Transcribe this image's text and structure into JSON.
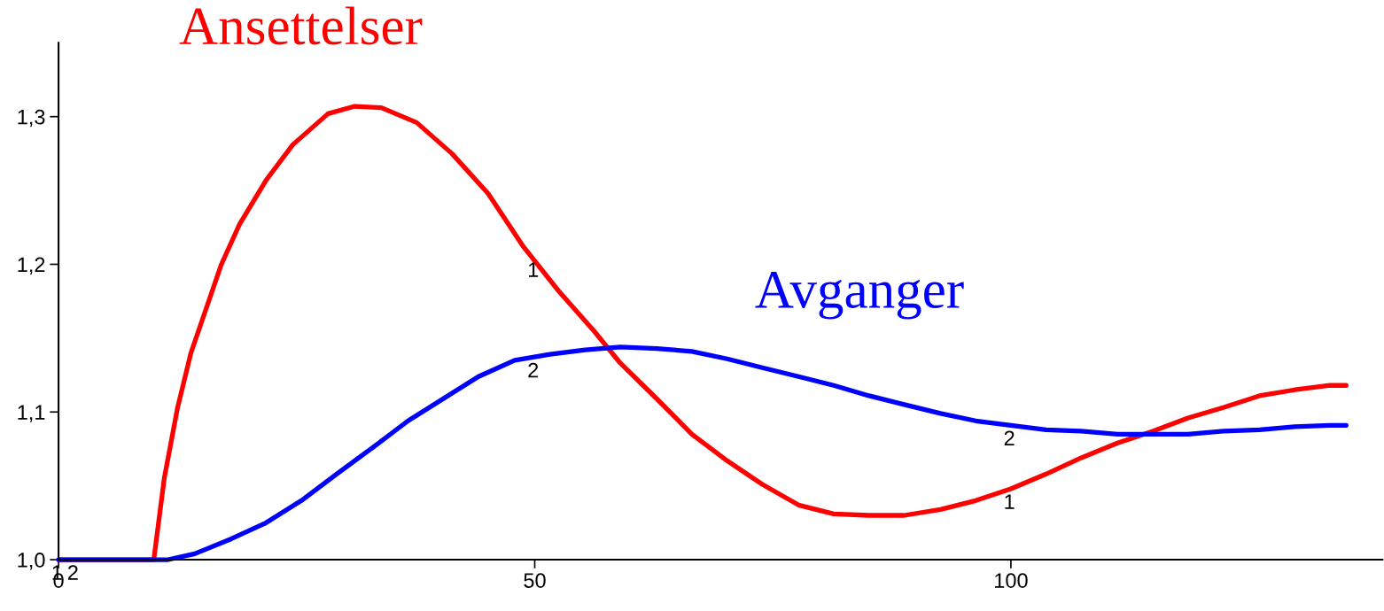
{
  "chart_data": {
    "type": "line",
    "xlim": [
      0,
      139
    ],
    "xticks": [
      0,
      50,
      100
    ],
    "ylim": [
      1.0,
      1.35
    ],
    "yticks": [
      {
        "value": 1.0,
        "label": "1,0"
      },
      {
        "value": 1.1,
        "label": "1,1"
      },
      {
        "value": 1.2,
        "label": "1,2"
      },
      {
        "value": 1.3,
        "label": "1,3"
      }
    ],
    "grid": false,
    "legend": false,
    "marker": "none",
    "line_style": "solid",
    "series": [
      {
        "name": "Ansettelser",
        "color": "#ff0000",
        "x": [
          0,
          10,
          11.1,
          12.5,
          13.9,
          15.5,
          17.1,
          19.0,
          21.8,
          24.6,
          28.3,
          31.1,
          33.9,
          37.6,
          41.3,
          45.1,
          48.8,
          52.5,
          56.2,
          59.0,
          62.8,
          66.5,
          70.2,
          73.9,
          77.7,
          81.4,
          85.1,
          88.8,
          92.6,
          96.3,
          100,
          103.7,
          107.4,
          111.2,
          114.9,
          118.6,
          122.3,
          126.1,
          129.8,
          133.5,
          135.2
        ],
        "values": [
          1.0,
          1.0,
          1.055,
          1.103,
          1.14,
          1.17,
          1.2,
          1.227,
          1.257,
          1.281,
          1.302,
          1.307,
          1.306,
          1.296,
          1.275,
          1.248,
          1.212,
          1.182,
          1.155,
          1.133,
          1.109,
          1.085,
          1.067,
          1.051,
          1.037,
          1.031,
          1.03,
          1.03,
          1.034,
          1.04,
          1.048,
          1.058,
          1.069,
          1.079,
          1.087,
          1.096,
          1.103,
          1.111,
          1.115,
          1.118,
          1.118
        ]
      },
      {
        "name": "Avganger",
        "color": "#0000ff",
        "x": [
          0,
          11.5,
          14.3,
          18.1,
          21.8,
          25.5,
          29.2,
          33.0,
          36.7,
          40.4,
          44.1,
          47.9,
          51.6,
          55.3,
          59.0,
          62.8,
          66.5,
          70.2,
          73.9,
          77.7,
          81.4,
          85.1,
          88.8,
          92.6,
          96.3,
          100,
          103.7,
          107.4,
          111.2,
          114.9,
          118.6,
          122.3,
          126.1,
          129.8,
          133.5,
          135.2
        ],
        "values": [
          1.0,
          1.0,
          1.004,
          1.014,
          1.025,
          1.04,
          1.058,
          1.076,
          1.094,
          1.109,
          1.124,
          1.135,
          1.139,
          1.142,
          1.144,
          1.143,
          1.141,
          1.136,
          1.13,
          1.124,
          1.118,
          1.111,
          1.105,
          1.099,
          1.094,
          1.091,
          1.088,
          1.087,
          1.085,
          1.085,
          1.085,
          1.087,
          1.088,
          1.09,
          1.091,
          1.091
        ]
      }
    ],
    "annotations": [
      {
        "text": "1",
        "x": 0,
        "y": 1.0
      },
      {
        "text": "2",
        "x": 0,
        "y": 1.0
      },
      {
        "text": "1",
        "x": 50,
        "y": 1.205
      },
      {
        "text": "2",
        "x": 50,
        "y": 1.137
      },
      {
        "text": "1",
        "x": 100,
        "y": 1.048
      },
      {
        "text": "2",
        "x": 100,
        "y": 1.091
      }
    ]
  }
}
